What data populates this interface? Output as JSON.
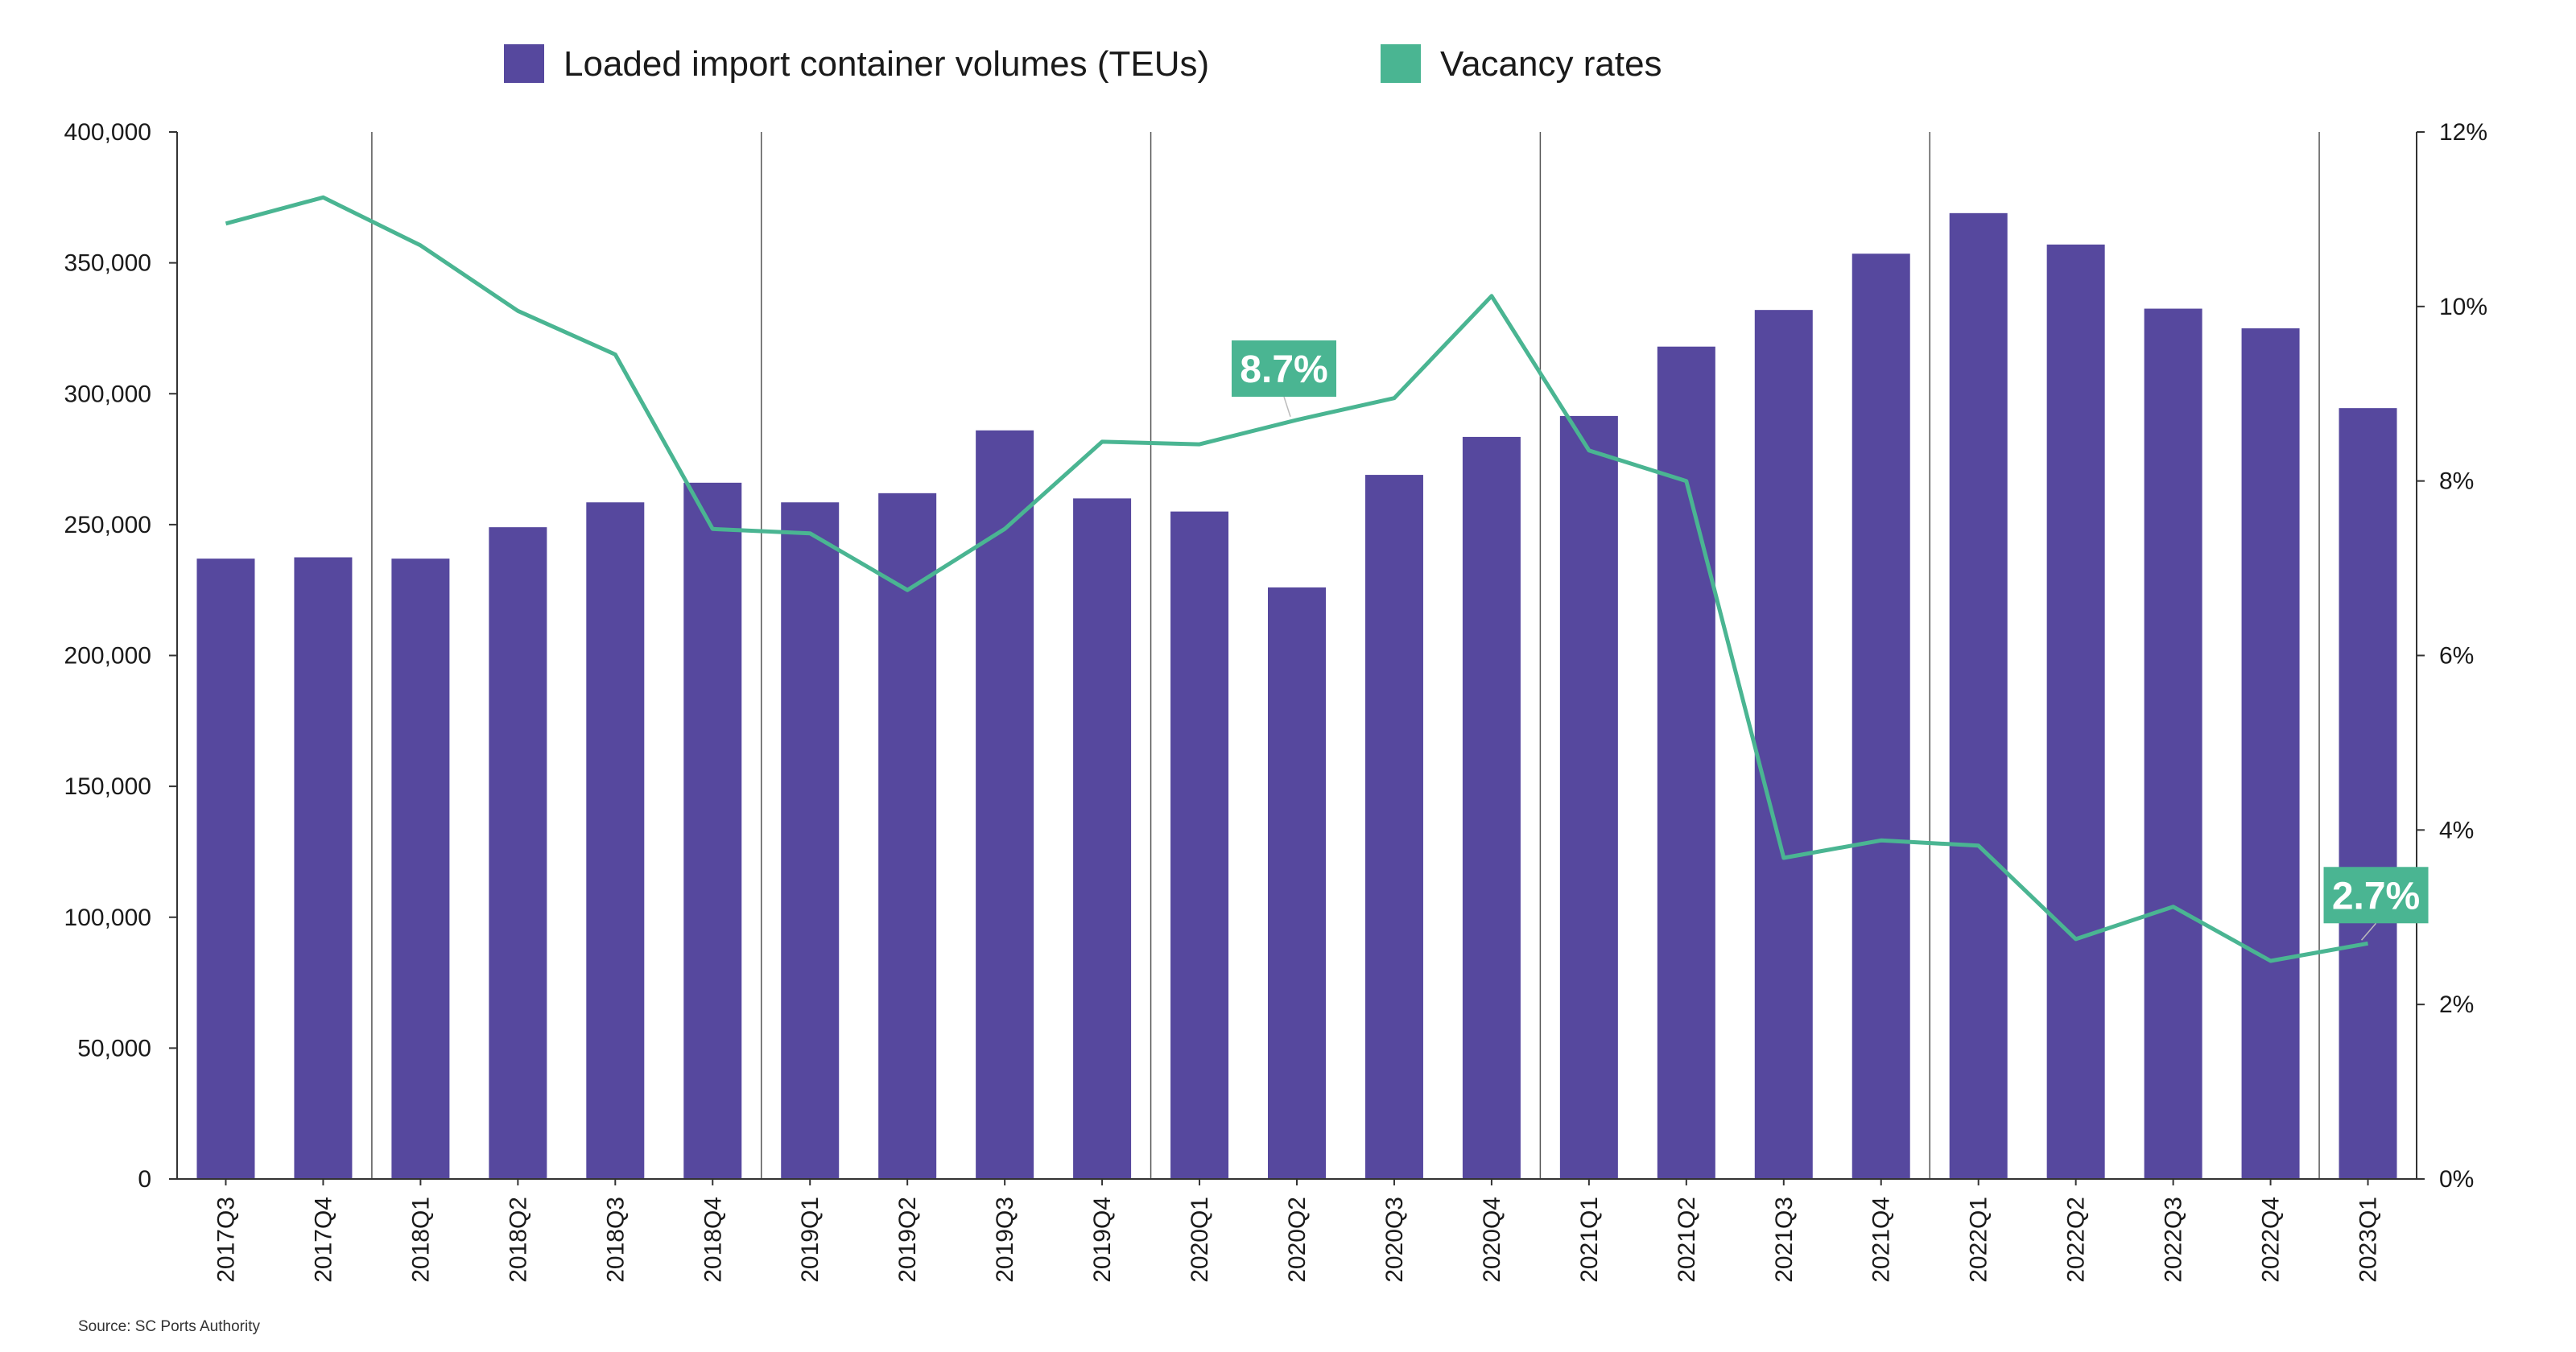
{
  "legend": {
    "bar_label": "Loaded import container volumes (TEUs)",
    "line_label": "Vacancy rates"
  },
  "source": "Source: SC Ports Authority",
  "colors": {
    "bar": "#56489e",
    "line": "#4ab592",
    "axis": "#333333",
    "divider": "#555555"
  },
  "callouts": [
    {
      "index": 11,
      "text": "8.7%"
    },
    {
      "index": 22,
      "text": "2.7%"
    }
  ],
  "chart_data": {
    "type": "bar",
    "categories": [
      "2017Q3",
      "2017Q4",
      "2018Q1",
      "2018Q2",
      "2018Q3",
      "2018Q4",
      "2019Q1",
      "2019Q2",
      "2019Q3",
      "2019Q4",
      "2020Q1",
      "2020Q2",
      "2020Q3",
      "2020Q4",
      "2021Q1",
      "2021Q2",
      "2021Q3",
      "2021Q4",
      "2022Q1",
      "2022Q2",
      "2022Q3",
      "2022Q4",
      "2023Q1"
    ],
    "series": [
      {
        "name": "Loaded import container volumes (TEUs)",
        "type": "bar",
        "axis": "left",
        "values": [
          237000,
          237500,
          237000,
          249000,
          258500,
          266000,
          258500,
          262000,
          286000,
          260000,
          255000,
          226000,
          269000,
          283500,
          291500,
          318000,
          332000,
          353500,
          369000,
          357000,
          332500,
          325000,
          294500
        ]
      },
      {
        "name": "Vacancy rates",
        "type": "line",
        "axis": "right",
        "values": [
          10.95,
          11.25,
          10.7,
          9.95,
          9.45,
          7.45,
          7.4,
          6.75,
          7.45,
          8.45,
          8.42,
          8.7,
          8.95,
          10.12,
          8.35,
          8.0,
          3.68,
          3.88,
          3.82,
          2.75,
          3.12,
          2.5,
          2.7
        ]
      }
    ],
    "y_left": {
      "ylim": [
        0,
        400000
      ],
      "ticks": [
        0,
        50000,
        100000,
        150000,
        200000,
        250000,
        300000,
        350000,
        400000
      ],
      "tick_labels": [
        "0",
        "50,000",
        "100,000",
        "150,000",
        "200,000",
        "250,000",
        "300,000",
        "350,000",
        "400,000"
      ]
    },
    "y_right": {
      "ylim": [
        0,
        12
      ],
      "ticks": [
        0,
        2,
        4,
        6,
        8,
        10,
        12
      ],
      "tick_labels": [
        "0%",
        "2%",
        "4%",
        "6%",
        "8%",
        "10%",
        "12%"
      ]
    },
    "grid": false,
    "year_dividers": true,
    "legend_position": "top-center"
  }
}
